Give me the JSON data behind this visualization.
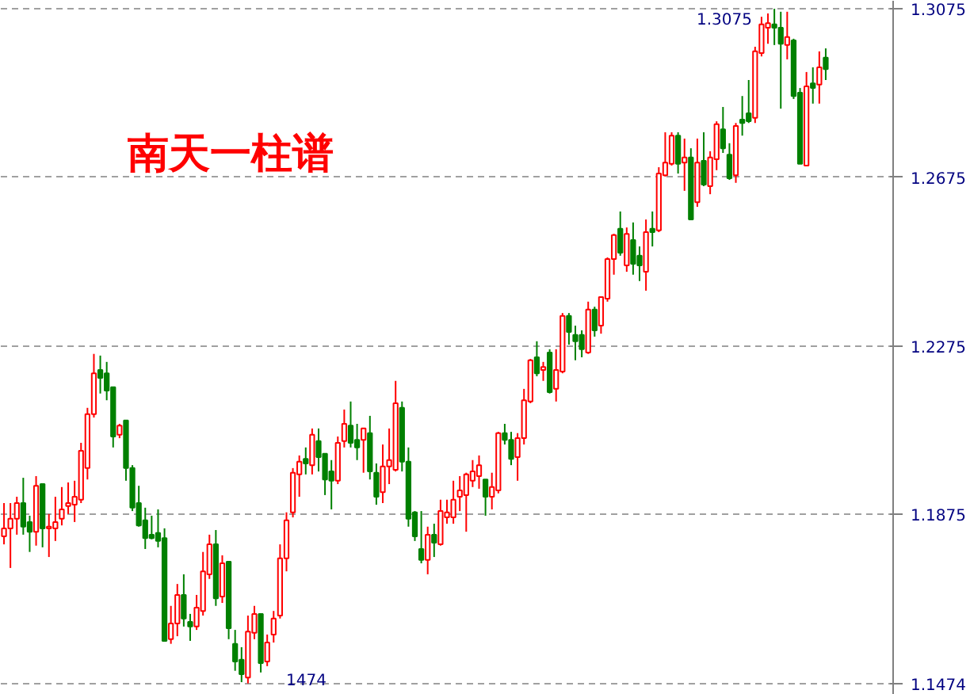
{
  "chart_data": {
    "type": "candlestick",
    "title": "南天一柱谱",
    "categories": [
      null,
      null,
      null,
      null,
      null,
      null,
      null,
      null,
      null,
      null,
      null,
      null,
      null,
      null,
      null,
      null,
      null,
      null,
      null,
      null,
      null,
      null,
      null,
      null,
      null,
      null,
      null,
      null,
      null,
      null,
      null,
      null,
      null,
      null,
      null,
      null,
      null,
      null,
      null,
      null,
      null,
      null,
      null,
      null,
      null,
      null,
      null,
      null,
      null,
      null,
      null,
      null,
      null,
      null,
      null,
      null,
      null,
      null,
      null,
      null,
      null,
      null,
      null,
      null,
      null,
      null,
      null,
      null,
      null,
      null,
      null,
      null,
      null,
      null,
      null,
      null,
      null,
      null,
      null,
      null,
      null,
      null,
      null,
      null,
      null,
      null,
      null,
      null,
      null,
      null,
      null,
      null,
      null,
      null,
      null,
      null,
      null,
      null,
      null,
      null,
      null,
      null,
      null,
      null,
      null,
      null,
      null,
      null,
      null,
      null,
      null,
      null,
      null,
      null,
      null,
      null,
      null,
      null,
      null,
      null,
      null,
      null,
      null,
      null,
      null,
      null,
      null,
      null,
      null
    ],
    "ohlc": [
      [
        1.1823,
        1.1902,
        1.1804,
        1.1842
      ],
      [
        1.1842,
        1.1902,
        1.1748,
        1.1865
      ],
      [
        1.1865,
        1.1917,
        1.1827,
        1.1902
      ],
      [
        1.1902,
        1.1962,
        1.1827,
        1.1846
      ],
      [
        1.1857,
        1.1872,
        1.1786,
        1.1834
      ],
      [
        1.1834,
        1.1966,
        1.1801,
        1.1943
      ],
      [
        1.1947,
        1.1947,
        1.1797,
        1.1842
      ],
      [
        1.1842,
        1.1876,
        1.1774,
        1.1846
      ],
      [
        1.1842,
        1.1917,
        1.1812,
        1.1857
      ],
      [
        1.1865,
        1.194,
        1.1849,
        1.1887
      ],
      [
        1.1895,
        1.1951,
        1.1876,
        1.1902
      ],
      [
        1.1898,
        1.1955,
        1.1857,
        1.1917
      ],
      [
        1.191,
        1.2045,
        1.1902,
        1.2026
      ],
      [
        1.1985,
        1.2128,
        1.1958,
        1.2113
      ],
      [
        1.2113,
        1.2256,
        1.2105,
        1.221
      ],
      [
        1.2218,
        1.2252,
        1.2162,
        1.2199
      ],
      [
        1.221,
        1.2237,
        1.2146,
        1.2169
      ],
      [
        1.2177,
        1.2177,
        1.2034,
        1.206
      ],
      [
        1.2064,
        1.209,
        1.2056,
        1.2086
      ],
      [
        1.2098,
        1.2098,
        1.1955,
        1.1985
      ],
      [
        1.1985,
        1.1992,
        1.1883,
        1.1891
      ],
      [
        1.1902,
        1.1943,
        1.1846,
        1.1849
      ],
      [
        1.1861,
        1.1891,
        1.1793,
        1.1819
      ],
      [
        1.1827,
        1.1872,
        1.1816,
        1.1819
      ],
      [
        1.1831,
        1.1887,
        1.1797,
        1.1812
      ],
      [
        1.1819,
        1.1842,
        1.1575,
        1.1575
      ],
      [
        1.1579,
        1.1658,
        1.1568,
        1.1616
      ],
      [
        1.1616,
        1.171,
        1.1586,
        1.1684
      ],
      [
        1.1684,
        1.1733,
        1.1609,
        1.1628
      ],
      [
        1.162,
        1.1639,
        1.1575,
        1.1609
      ],
      [
        1.1609,
        1.1684,
        1.1601,
        1.1654
      ],
      [
        1.1646,
        1.1786,
        1.1635,
        1.174
      ],
      [
        1.1733,
        1.1827,
        1.1722,
        1.1804
      ],
      [
        1.1804,
        1.1838,
        1.1658,
        1.1676
      ],
      [
        1.168,
        1.1778,
        1.1665,
        1.1759
      ],
      [
        1.1763,
        1.1763,
        1.1579,
        1.1605
      ],
      [
        1.1568,
        1.1601,
        1.1504,
        1.1526
      ],
      [
        1.153,
        1.156,
        1.1477,
        1.1496
      ],
      [
        1.1488,
        1.1635,
        1.1474,
        1.1597
      ],
      [
        1.1594,
        1.1658,
        1.1579,
        1.1639
      ],
      [
        1.1639,
        1.1639,
        1.15,
        1.1522
      ],
      [
        1.1526,
        1.159,
        1.1515,
        1.1571
      ],
      [
        1.159,
        1.1646,
        1.1571,
        1.1628
      ],
      [
        1.1635,
        1.1804,
        1.1628,
        1.1771
      ],
      [
        1.1771,
        1.188,
        1.174,
        1.1861
      ],
      [
        1.188,
        1.1985,
        1.1868,
        1.1974
      ],
      [
        1.197,
        1.2015,
        1.1917,
        1.2
      ],
      [
        1.2007,
        1.2034,
        1.197,
        1.1996
      ],
      [
        1.1992,
        1.2079,
        1.197,
        1.2064
      ],
      [
        1.2049,
        1.2079,
        1.1977,
        1.2011
      ],
      [
        1.2019,
        1.2019,
        1.1921,
        1.1958
      ],
      [
        1.1977,
        1.2004,
        1.1887,
        1.1955
      ],
      [
        1.1955,
        1.206,
        1.1947,
        1.2045
      ],
      [
        1.2049,
        1.2124,
        1.2034,
        1.209
      ],
      [
        1.2086,
        1.2143,
        1.2034,
        1.2045
      ],
      [
        1.2052,
        1.209,
        1.2004,
        1.2034
      ],
      [
        1.2052,
        1.2079,
        1.1974,
        1.2079
      ],
      [
        1.2068,
        1.2109,
        1.1958,
        1.1977
      ],
      [
        1.1974,
        1.1996,
        1.1898,
        1.1917
      ],
      [
        1.1928,
        1.2041,
        1.1902,
        1.1989
      ],
      [
        1.1989,
        1.2079,
        1.1947,
        1.2004
      ],
      [
        1.1981,
        1.2192,
        1.1977,
        1.2139
      ],
      [
        1.2128,
        1.2143,
        1.1977,
        1.2
      ],
      [
        1.2,
        1.2034,
        1.1846,
        1.1865
      ],
      [
        1.188,
        1.1883,
        1.1812,
        1.1823
      ],
      [
        1.1793,
        1.1883,
        1.1759,
        1.1767
      ],
      [
        1.1767,
        1.1846,
        1.1733,
        1.1827
      ],
      [
        1.1827,
        1.1853,
        1.1774,
        1.1808
      ],
      [
        1.1804,
        1.191,
        1.1801,
        1.1883
      ],
      [
        1.1868,
        1.191,
        1.1853,
        1.188
      ],
      [
        1.1868,
        1.1955,
        1.1853,
        1.191
      ],
      [
        1.1917,
        1.1966,
        1.1883,
        1.1932
      ],
      [
        1.1921,
        1.1974,
        1.1834,
        1.197
      ],
      [
        1.1955,
        1.2004,
        1.194,
        1.1977
      ],
      [
        1.1966,
        1.2015,
        1.1936,
        1.1992
      ],
      [
        1.1958,
        1.1958,
        1.1872,
        1.1917
      ],
      [
        1.1917,
        1.1974,
        1.1887,
        1.194
      ],
      [
        1.1932,
        1.2071,
        1.1925,
        1.2068
      ],
      [
        1.2068,
        1.209,
        1.2041,
        1.2052
      ],
      [
        1.2052,
        1.2071,
        1.1992,
        1.2007
      ],
      [
        1.2011,
        1.2068,
        1.1955,
        1.2056
      ],
      [
        1.2056,
        1.2173,
        1.2041,
        1.2146
      ],
      [
        1.2143,
        1.2244,
        1.2139,
        1.2241
      ],
      [
        1.2248,
        1.2286,
        1.2203,
        1.221
      ],
      [
        1.2218,
        1.2237,
        1.2192,
        1.2225
      ],
      [
        1.2259,
        1.2267,
        1.2162,
        1.2165
      ],
      [
        1.2173,
        1.2267,
        1.2143,
        1.2218
      ],
      [
        1.2214,
        1.2353,
        1.221,
        1.2346
      ],
      [
        1.2346,
        1.2353,
        1.2278,
        1.2308
      ],
      [
        1.2301,
        1.2323,
        1.2241,
        1.2286
      ],
      [
        1.2301,
        1.2312,
        1.2248,
        1.2267
      ],
      [
        1.2259,
        1.238,
        1.2256,
        1.2361
      ],
      [
        1.2361,
        1.2368,
        1.2297,
        1.2312
      ],
      [
        1.2323,
        1.2391,
        1.2304,
        1.2391
      ],
      [
        1.2387,
        1.2485,
        1.238,
        1.2481
      ],
      [
        1.2481,
        1.2541,
        1.2444,
        1.2538
      ],
      [
        1.2553,
        1.2594,
        1.2489,
        1.2496
      ],
      [
        1.2466,
        1.2556,
        1.2451,
        1.2541
      ],
      [
        1.2526,
        1.2568,
        1.2444,
        1.247
      ],
      [
        1.2489,
        1.2511,
        1.2429,
        1.2466
      ],
      [
        1.2451,
        1.2575,
        1.2406,
        1.2545
      ],
      [
        1.2553,
        1.2594,
        1.2511,
        1.2545
      ],
      [
        1.2549,
        1.2699,
        1.2545,
        1.2684
      ],
      [
        1.268,
        1.2782,
        1.2677,
        1.271
      ],
      [
        1.2707,
        1.2782,
        1.2703,
        1.2774
      ],
      [
        1.2774,
        1.2782,
        1.2684,
        1.2707
      ],
      [
        1.271,
        1.2767,
        1.2643,
        1.2722
      ],
      [
        1.2722,
        1.2744,
        1.2575,
        1.2575
      ],
      [
        1.2616,
        1.2767,
        1.2605,
        1.271
      ],
      [
        1.2714,
        1.2782,
        1.2654,
        1.2658
      ],
      [
        1.2654,
        1.2737,
        1.2635,
        1.2722
      ],
      [
        1.2718,
        1.2808,
        1.2692,
        1.2801
      ],
      [
        1.2789,
        1.2842,
        1.2733,
        1.2744
      ],
      [
        1.2729,
        1.2756,
        1.2669,
        1.2673
      ],
      [
        1.268,
        1.2804,
        1.2662,
        1.2797
      ],
      [
        1.2812,
        1.2868,
        1.2774,
        1.2804
      ],
      [
        1.2827,
        1.2906,
        1.2804,
        1.2808
      ],
      [
        1.2816,
        1.2985,
        1.2804,
        1.2974
      ],
      [
        1.297,
        1.3056,
        1.2962,
        1.3038
      ],
      [
        1.303,
        1.3064,
        1.2992,
        1.3041
      ],
      [
        1.3038,
        1.3075,
        1.2989,
        1.303
      ],
      [
        1.303,
        1.3068,
        1.2838,
        1.2992
      ],
      [
        1.2989,
        1.3068,
        1.2955,
        1.3008
      ],
      [
        1.3,
        1.3004,
        1.2861,
        1.2868
      ],
      [
        1.2876,
        1.2887,
        1.2707,
        1.2707
      ],
      [
        1.2703,
        1.2925,
        1.2703,
        1.2891
      ],
      [
        1.2898,
        1.2936,
        1.285,
        1.2887
      ],
      [
        1.2895,
        1.2974,
        1.285,
        1.2936
      ],
      [
        1.2959,
        1.2981,
        1.2906,
        1.2932
      ]
    ],
    "colors": [
      "#ff0000",
      "#ff0000",
      "#ff0000",
      "#008000",
      "#008000",
      "#ff0000",
      "#008000",
      "#ff0000",
      "#ff0000",
      "#ff0000",
      "#ff0000",
      "#ff0000",
      "#ff0000",
      "#ff0000",
      "#ff0000",
      "#008000",
      "#008000",
      "#008000",
      "#ff0000",
      "#008000",
      "#008000",
      "#008000",
      "#008000",
      "#008000",
      "#008000",
      "#008000",
      "#ff0000",
      "#ff0000",
      "#008000",
      "#008000",
      "#ff0000",
      "#ff0000",
      "#ff0000",
      "#008000",
      "#ff0000",
      "#008000",
      "#008000",
      "#008000",
      "#ff0000",
      "#ff0000",
      "#008000",
      "#ff0000",
      "#ff0000",
      "#ff0000",
      "#ff0000",
      "#ff0000",
      "#ff0000",
      "#008000",
      "#ff0000",
      "#008000",
      "#008000",
      "#008000",
      "#ff0000",
      "#ff0000",
      "#008000",
      "#008000",
      "#ff0000",
      "#008000",
      "#008000",
      "#ff0000",
      "#ff0000",
      "#ff0000",
      "#008000",
      "#008000",
      "#008000",
      "#008000",
      "#ff0000",
      "#008000",
      "#ff0000",
      "#ff0000",
      "#ff0000",
      "#ff0000",
      "#ff0000",
      "#ff0000",
      "#ff0000",
      "#008000",
      "#ff0000",
      "#ff0000",
      "#008000",
      "#008000",
      "#ff0000",
      "#ff0000",
      "#ff0000",
      "#008000",
      "#ff0000",
      "#008000",
      "#ff0000",
      "#ff0000",
      "#008000",
      "#008000",
      "#008000",
      "#ff0000",
      "#008000",
      "#ff0000",
      "#ff0000",
      "#ff0000",
      "#008000",
      "#ff0000",
      "#008000",
      "#008000",
      "#ff0000",
      "#008000",
      "#ff0000",
      "#ff0000",
      "#ff0000",
      "#008000",
      "#ff0000",
      "#008000",
      "#ff0000",
      "#008000",
      "#ff0000",
      "#ff0000",
      "#008000",
      "#008000",
      "#ff0000",
      "#008000",
      "#008000",
      "#ff0000",
      "#ff0000",
      "#ff0000",
      "#008000",
      "#008000",
      "#ff0000",
      "#008000",
      "#008000",
      "#ff0000",
      "#008000",
      "#ff0000",
      "#008000"
    ],
    "ylim": [
      1.1447,
      1.3094
    ],
    "yticks": [
      1.1474,
      1.1875,
      1.2275,
      1.2675,
      1.3075
    ],
    "grid": "y",
    "tick_labels": "y",
    "annotations": [
      "1.3075",
      "1474"
    ]
  }
}
